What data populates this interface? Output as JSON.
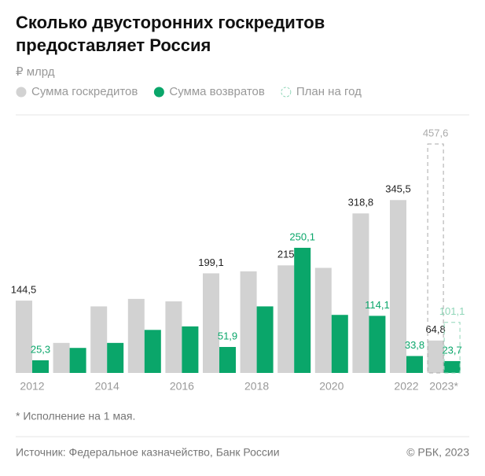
{
  "chart_data": {
    "type": "bar",
    "title": "Сколько двусторонних госкредитов предоставляет Россия",
    "subtitle": "₽ млрд",
    "categories": [
      "2012",
      null,
      "2014",
      null,
      "2016",
      null,
      "2018",
      null,
      "2020",
      null,
      "2022",
      "2023*"
    ],
    "series": [
      {
        "name": "Сумма госкредитов",
        "color": "#d2d2d2",
        "label_color": "#222222",
        "values": [
          144.5,
          60,
          133,
          148,
          143,
          199.1,
          203,
          215,
          210,
          318.8,
          345.5,
          64.8
        ],
        "value_labels": [
          "144,5",
          null,
          null,
          null,
          null,
          "199,1",
          null,
          "215",
          null,
          "318,8",
          "345,5",
          "64,8"
        ]
      },
      {
        "name": "Сумма возвратов",
        "color": "#0aa66a",
        "label_color": "#0aa66a",
        "values": [
          25.3,
          50,
          60,
          86,
          93,
          51.9,
          133,
          250.1,
          116,
          114.1,
          33.8,
          23.7
        ],
        "value_labels": [
          "25,3",
          null,
          null,
          null,
          null,
          "51,9",
          null,
          "250,1",
          null,
          "114,1",
          "33,8",
          "23,7"
        ]
      }
    ],
    "plan": {
      "name": "План на год",
      "values": [
        457.6,
        101.1
      ],
      "value_labels": [
        "457,6",
        "101,1"
      ],
      "colors": [
        "#aaaaaa",
        "#8fd6b8"
      ]
    },
    "footnote": "* Исполнение на 1 мая.",
    "source": "Источник: Федеральное казначейство, Банк России",
    "copyright": "© РБК, 2023"
  }
}
